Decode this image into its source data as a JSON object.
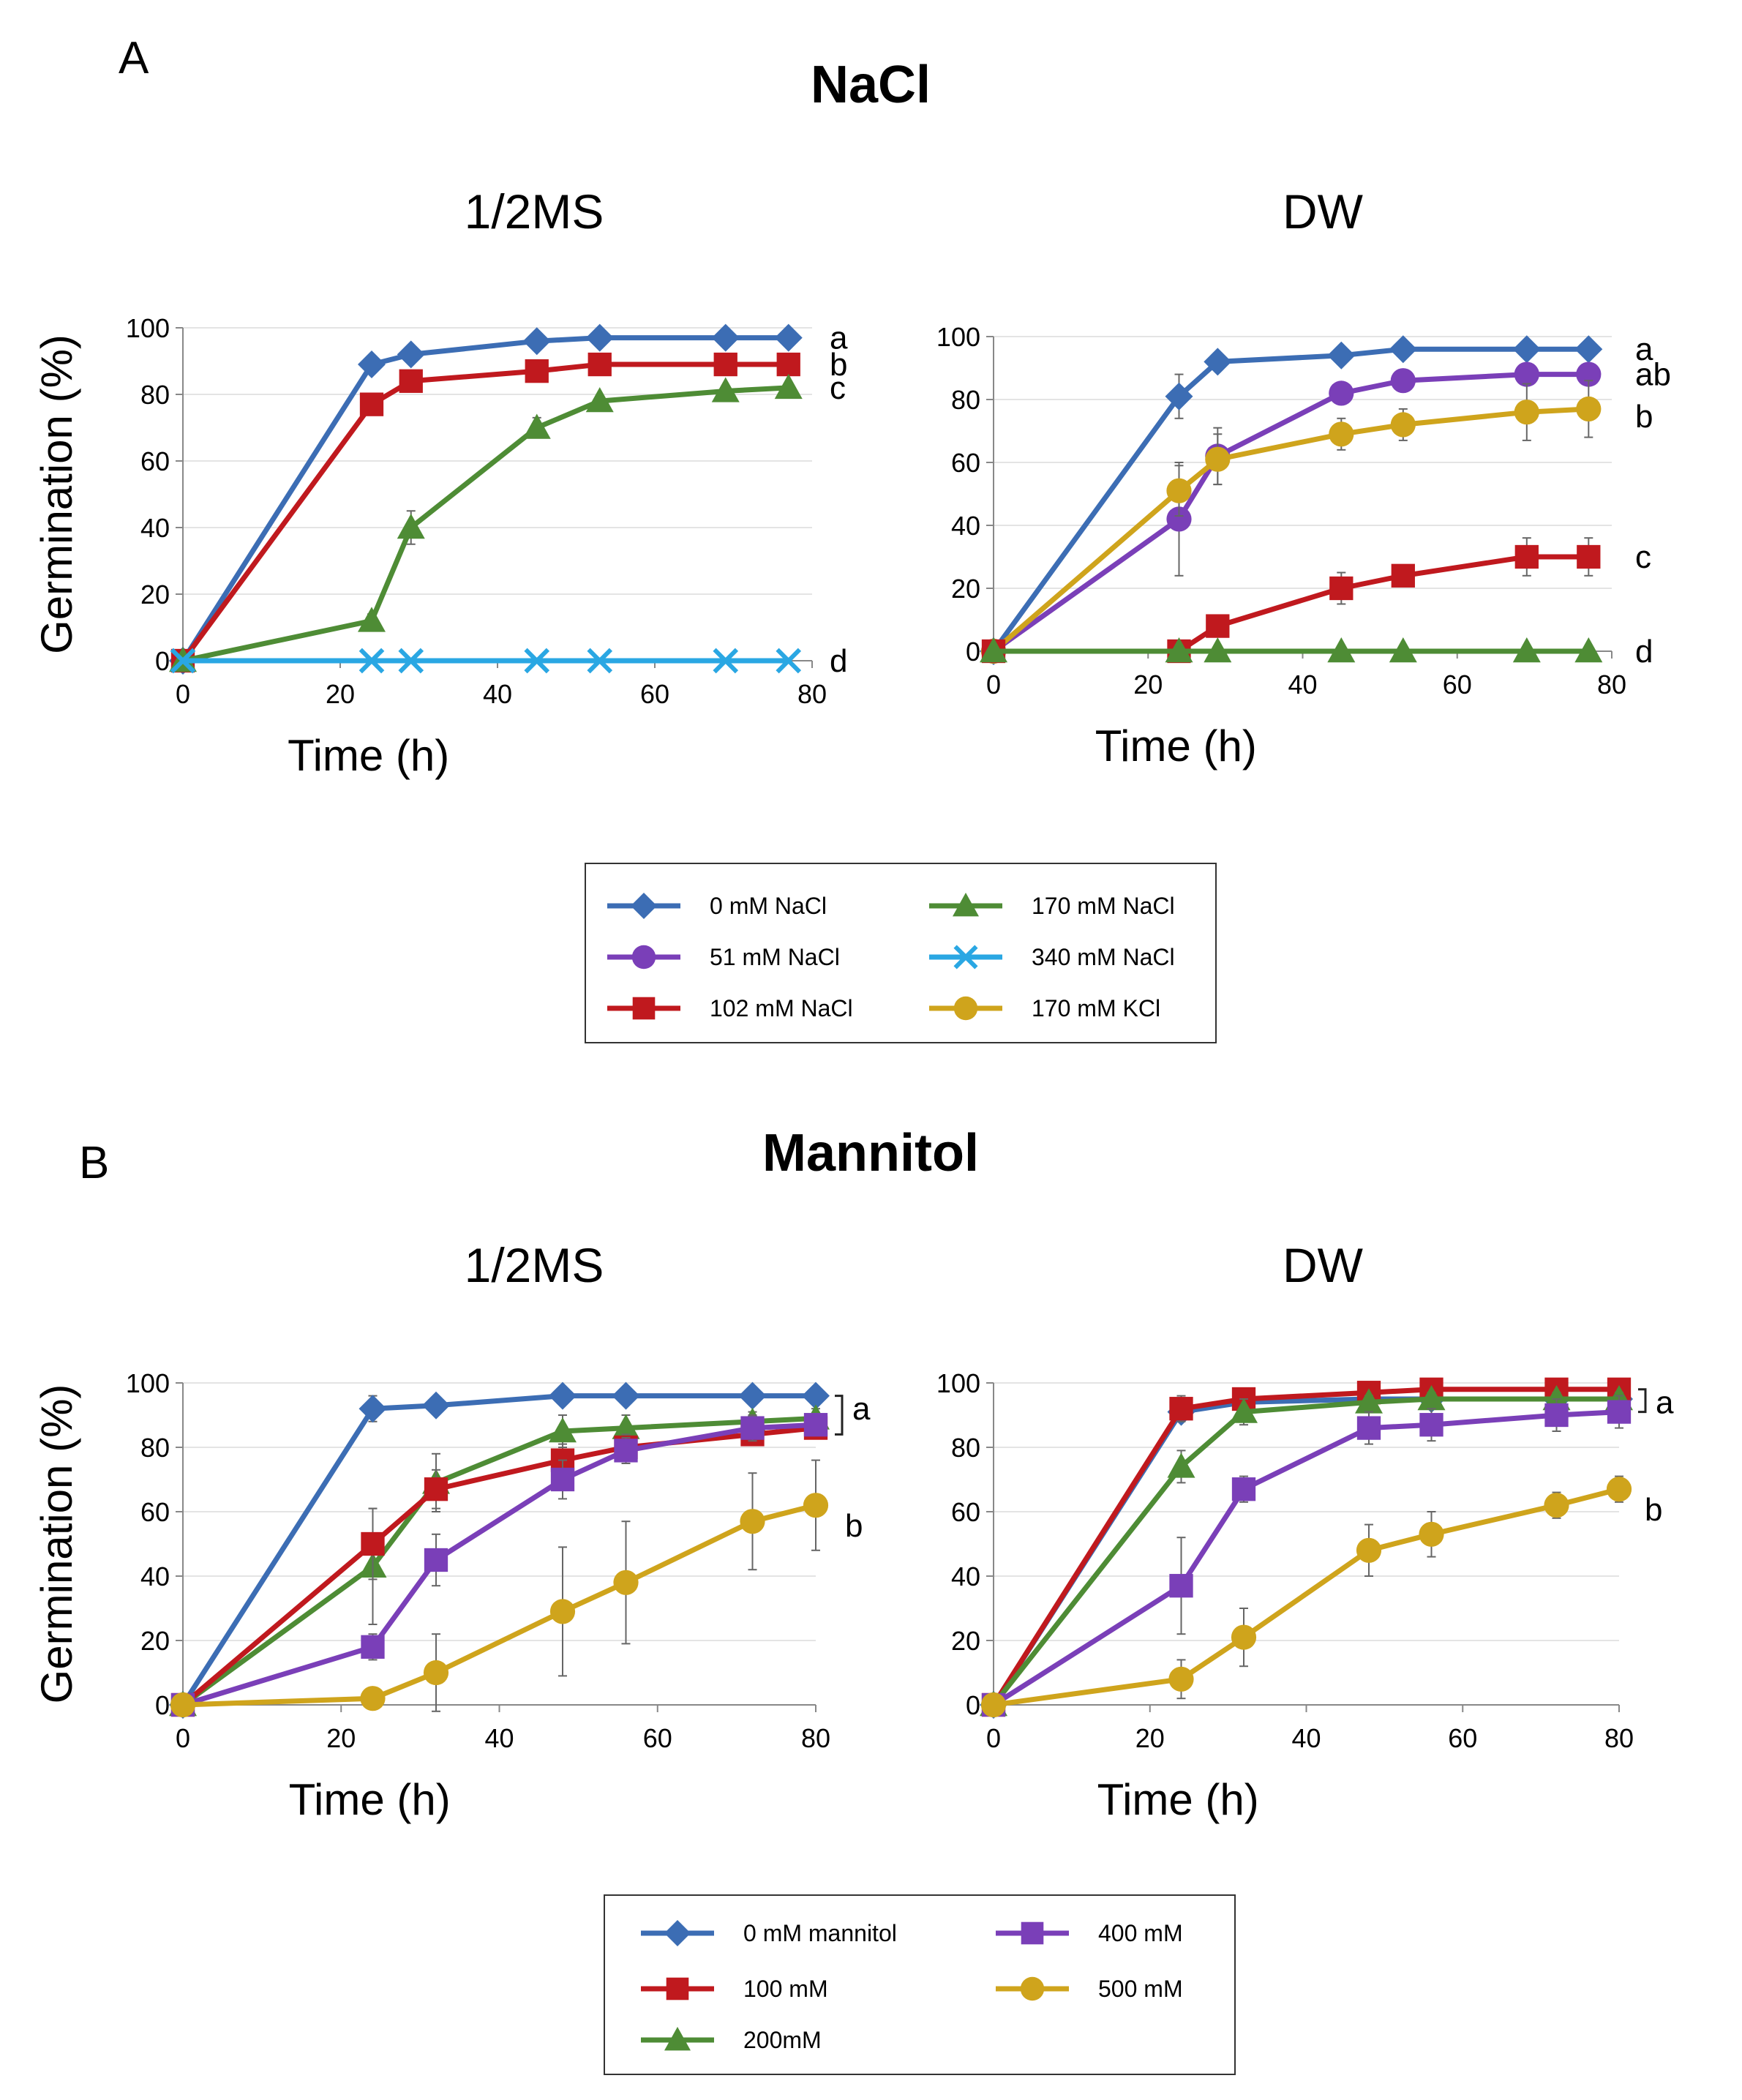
{
  "figure": {
    "panel_labels": [
      "A",
      "B"
    ],
    "section_titles": [
      "NaCl",
      "Mannitol"
    ]
  },
  "colors": {
    "blue": "#3c6db4",
    "purple": "#7a3fb8",
    "red": "#c0191e",
    "green": "#4e8c35",
    "cyan": "#2aa7e3",
    "gold": "#cfa41c",
    "axis": "#888888",
    "grid": "#e4e4e4"
  },
  "chart_data": [
    {
      "id": "nacl_ms",
      "type": "line",
      "title": "1/2MS",
      "xlabel": "Time (h)",
      "ylabel": "Germination (%)",
      "xlim": [
        0,
        80
      ],
      "ylim": [
        0,
        100
      ],
      "xticks": [
        "0",
        "20",
        "40",
        "60",
        "80"
      ],
      "yticks": [
        "0",
        "20",
        "40",
        "60",
        "80",
        "100"
      ],
      "grid": true,
      "series": [
        {
          "name": "0 mM NaCl",
          "color": "#3c6db4",
          "marker": "diamond",
          "x": [
            0,
            24,
            29,
            45,
            53,
            69,
            77
          ],
          "y": [
            0,
            89,
            92,
            96,
            97,
            97,
            97
          ],
          "err": [
            0,
            0,
            0,
            0,
            0,
            0,
            0
          ],
          "sig": "a"
        },
        {
          "name": "102 mM NaCl",
          "color": "#c0191e",
          "marker": "square",
          "x": [
            0,
            24,
            29,
            45,
            53,
            69,
            77
          ],
          "y": [
            0,
            77,
            84,
            87,
            89,
            89,
            89
          ],
          "err": [
            0,
            0,
            0,
            0,
            0,
            0,
            0
          ],
          "sig": "b"
        },
        {
          "name": "170 mM NaCl",
          "color": "#4e8c35",
          "marker": "triangle",
          "x": [
            0,
            24,
            29,
            45,
            53,
            69,
            77
          ],
          "y": [
            0,
            12,
            40,
            70,
            78,
            81,
            82
          ],
          "err": [
            0,
            2,
            5,
            3,
            0,
            0,
            0
          ],
          "sig": "c"
        },
        {
          "name": "340 mM NaCl",
          "color": "#2aa7e3",
          "marker": "x",
          "x": [
            0,
            24,
            29,
            45,
            53,
            69,
            77
          ],
          "y": [
            0,
            0,
            0,
            0,
            0,
            0,
            0
          ],
          "err": [
            0,
            0,
            0,
            0,
            0,
            0,
            0
          ],
          "sig": "d"
        }
      ]
    },
    {
      "id": "nacl_dw",
      "type": "line",
      "title": "DW",
      "xlabel": "Time (h)",
      "ylabel": "",
      "xlim": [
        0,
        80
      ],
      "ylim": [
        0,
        100
      ],
      "xticks": [
        "0",
        "20",
        "40",
        "60",
        "80"
      ],
      "yticks": [
        "0",
        "20",
        "40",
        "60",
        "80",
        "100"
      ],
      "grid": true,
      "series": [
        {
          "name": "0 mM NaCl",
          "color": "#3c6db4",
          "marker": "diamond",
          "x": [
            0,
            24,
            29,
            45,
            53,
            69,
            77
          ],
          "y": [
            0,
            81,
            92,
            94,
            96,
            96,
            96
          ],
          "err": [
            0,
            7,
            0,
            0,
            0,
            0,
            0
          ],
          "sig": "a"
        },
        {
          "name": "51 mM NaCl",
          "color": "#7a3fb8",
          "marker": "circle",
          "x": [
            0,
            24,
            29,
            45,
            53,
            69,
            77
          ],
          "y": [
            0,
            42,
            62,
            82,
            86,
            88,
            88
          ],
          "err": [
            0,
            18,
            9,
            2,
            2,
            2,
            2
          ],
          "sig": "ab"
        },
        {
          "name": "170 mM KCl",
          "color": "#cfa41c",
          "marker": "circle",
          "x": [
            0,
            24,
            29,
            45,
            53,
            69,
            77
          ],
          "y": [
            0,
            51,
            61,
            69,
            72,
            76,
            77
          ],
          "err": [
            0,
            8,
            8,
            5,
            5,
            9,
            9
          ],
          "sig": "b"
        },
        {
          "name": "102 mM NaCl",
          "color": "#c0191e",
          "marker": "square",
          "x": [
            0,
            24,
            29,
            45,
            53,
            69,
            77
          ],
          "y": [
            0,
            0,
            8,
            20,
            24,
            30,
            30
          ],
          "err": [
            0,
            0,
            2,
            5,
            3,
            6,
            6
          ],
          "sig": "c"
        },
        {
          "name": "170 mM NaCl",
          "color": "#4e8c35",
          "marker": "triangle",
          "x": [
            0,
            24,
            29,
            45,
            53,
            69,
            77
          ],
          "y": [
            0,
            0,
            0,
            0,
            0,
            0,
            0
          ],
          "err": [
            0,
            0,
            0,
            0,
            0,
            0,
            0
          ],
          "sig": "d"
        }
      ]
    },
    {
      "id": "mannitol_ms",
      "type": "line",
      "title": "1/2MS",
      "xlabel": "Time (h)",
      "ylabel": "Germination (%)",
      "xlim": [
        0,
        80
      ],
      "ylim": [
        0,
        100
      ],
      "xticks": [
        "0",
        "20",
        "40",
        "60",
        "80"
      ],
      "yticks": [
        "0",
        "20",
        "40",
        "60",
        "80",
        "100"
      ],
      "grid": true,
      "series": [
        {
          "name": "0 mM mannitol",
          "color": "#3c6db4",
          "marker": "diamond",
          "x": [
            0,
            24,
            32,
            48,
            56,
            72,
            80
          ],
          "y": [
            0,
            92,
            93,
            96,
            96,
            96,
            96
          ],
          "err": [
            0,
            4,
            2,
            2,
            2,
            2,
            2
          ],
          "sig": ""
        },
        {
          "name": "200mM",
          "color": "#4e8c35",
          "marker": "triangle",
          "x": [
            0,
            24,
            32,
            48,
            56,
            72,
            80
          ],
          "y": [
            0,
            43,
            69,
            85,
            86,
            88,
            89
          ],
          "err": [
            0,
            18,
            9,
            5,
            4,
            3,
            3
          ],
          "sig": ""
        },
        {
          "name": "100 mM",
          "color": "#c0191e",
          "marker": "square",
          "x": [
            0,
            24,
            32,
            48,
            56,
            72,
            80
          ],
          "y": [
            0,
            50,
            67,
            76,
            80,
            84,
            86
          ],
          "err": [
            0,
            11,
            6,
            5,
            4,
            3,
            3
          ],
          "sig": ""
        },
        {
          "name": "400 mM",
          "color": "#7a3fb8",
          "marker": "square",
          "x": [
            0,
            24,
            32,
            48,
            56,
            72,
            80
          ],
          "y": [
            0,
            18,
            45,
            70,
            79,
            86,
            87
          ],
          "err": [
            0,
            4,
            8,
            6,
            4,
            4,
            3
          ],
          "sig": ""
        },
        {
          "name": "500 mM",
          "color": "#cfa41c",
          "marker": "circle",
          "x": [
            0,
            24,
            32,
            48,
            56,
            72,
            80
          ],
          "y": [
            0,
            2,
            10,
            29,
            38,
            57,
            62
          ],
          "err": [
            0,
            1,
            12,
            20,
            19,
            15,
            14
          ],
          "sig": "b"
        }
      ],
      "bracket_sig": "a"
    },
    {
      "id": "mannitol_dw",
      "type": "line",
      "title": "DW",
      "xlabel": "Time (h)",
      "ylabel": "",
      "xlim": [
        0,
        80
      ],
      "ylim": [
        0,
        100
      ],
      "xticks": [
        "0",
        "20",
        "40",
        "60",
        "80"
      ],
      "yticks": [
        "0",
        "20",
        "40",
        "60",
        "80",
        "100"
      ],
      "grid": true,
      "series": [
        {
          "name": "0 mM mannitol",
          "color": "#3c6db4",
          "marker": "diamond",
          "x": [
            0,
            24,
            32,
            48,
            56,
            72,
            80
          ],
          "y": [
            0,
            91,
            94,
            95,
            95,
            95,
            95
          ],
          "err": [
            0,
            2,
            2,
            2,
            2,
            2,
            2
          ],
          "sig": ""
        },
        {
          "name": "100 mM",
          "color": "#c0191e",
          "marker": "square",
          "x": [
            0,
            24,
            32,
            48,
            56,
            72,
            80
          ],
          "y": [
            0,
            92,
            95,
            97,
            98,
            98,
            98
          ],
          "err": [
            0,
            4,
            2,
            2,
            2,
            2,
            2
          ],
          "sig": ""
        },
        {
          "name": "200mM",
          "color": "#4e8c35",
          "marker": "triangle",
          "x": [
            0,
            24,
            32,
            48,
            56,
            72,
            80
          ],
          "y": [
            0,
            74,
            91,
            94,
            95,
            95,
            95
          ],
          "err": [
            0,
            5,
            4,
            2,
            2,
            2,
            2
          ],
          "sig": ""
        },
        {
          "name": "400 mM",
          "color": "#7a3fb8",
          "marker": "square",
          "x": [
            0,
            24,
            32,
            48,
            56,
            72,
            80
          ],
          "y": [
            0,
            37,
            67,
            86,
            87,
            90,
            91
          ],
          "err": [
            0,
            15,
            4,
            5,
            5,
            5,
            5
          ],
          "sig": ""
        },
        {
          "name": "500 mM",
          "color": "#cfa41c",
          "marker": "circle",
          "x": [
            0,
            24,
            32,
            48,
            56,
            72,
            80
          ],
          "y": [
            0,
            8,
            21,
            48,
            53,
            62,
            67
          ],
          "err": [
            0,
            6,
            9,
            8,
            7,
            4,
            4
          ],
          "sig": "b"
        }
      ],
      "bracket_sig": "a"
    }
  ],
  "legends": [
    {
      "items": [
        {
          "label": "0 mM NaCl",
          "color": "#3c6db4",
          "marker": "diamond"
        },
        {
          "label": "51 mM NaCl",
          "color": "#7a3fb8",
          "marker": "circle"
        },
        {
          "label": "102 mM NaCl",
          "color": "#c0191e",
          "marker": "square"
        },
        {
          "label": "170 mM NaCl",
          "color": "#4e8c35",
          "marker": "triangle"
        },
        {
          "label": "340 mM NaCl",
          "color": "#2aa7e3",
          "marker": "x"
        },
        {
          "label": "170 mM KCl",
          "color": "#cfa41c",
          "marker": "circle"
        }
      ]
    },
    {
      "items": [
        {
          "label": "0 mM mannitol",
          "color": "#3c6db4",
          "marker": "diamond"
        },
        {
          "label": "100 mM",
          "color": "#c0191e",
          "marker": "square"
        },
        {
          "label": "200mM",
          "color": "#4e8c35",
          "marker": "triangle"
        },
        {
          "label": "400 mM",
          "color": "#7a3fb8",
          "marker": "square"
        },
        {
          "label": "500 mM",
          "color": "#cfa41c",
          "marker": "circle"
        }
      ]
    }
  ]
}
